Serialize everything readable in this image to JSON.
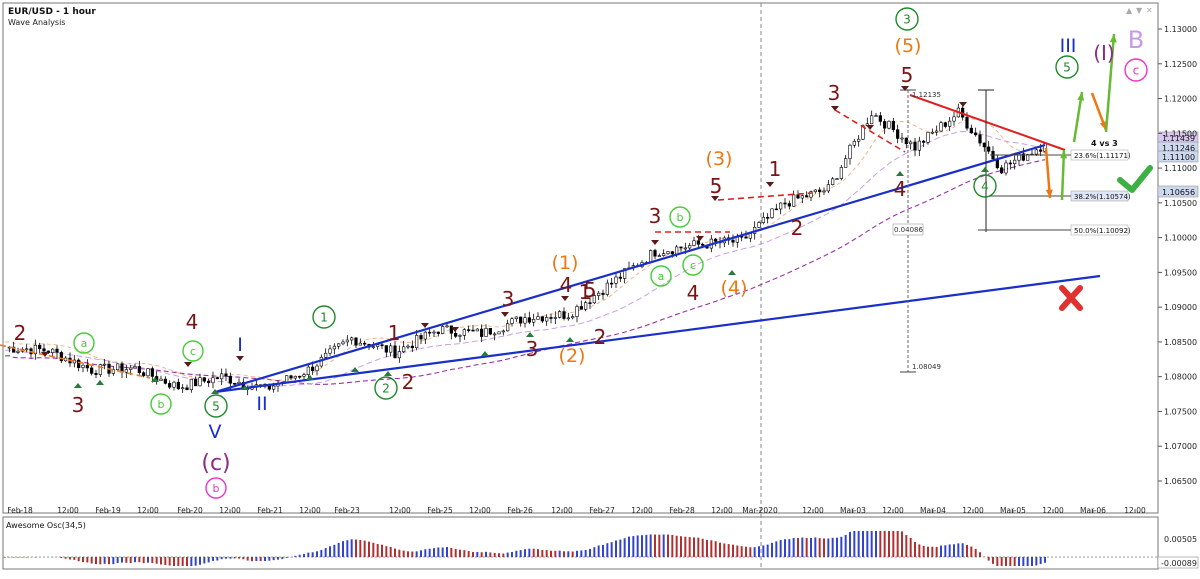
{
  "header": {
    "symbol": "EUR/USD - 1 hour",
    "subtitle": "Wave Analysis"
  },
  "window_controls": {
    "up": "▲",
    "down": "▼",
    "close": "✕"
  },
  "indicator": {
    "title": "Awesome Osc(34,5)",
    "axis_top": "0.00505",
    "axis_bottom": "-0.00089"
  },
  "x_ticks": [
    "Feb-18",
    "12:00",
    "Feb-19",
    "12:00",
    "Feb-20",
    "12:00",
    "Feb-21",
    "12:00",
    "Feb-23",
    "12:00",
    "Feb-25",
    "12:00",
    "Feb-26",
    "12:00",
    "Feb-27",
    "12:00",
    "Feb-28",
    "12:00",
    "Mar-2020",
    "12:00",
    "Mar-03",
    "12:00",
    "Mar-04",
    "12:00",
    "Mar-05",
    "12:00",
    "Mar-06",
    "12:00"
  ],
  "y_ticks": [
    "1.13000",
    "1.12500",
    "1.12000",
    "1.11500",
    "1.11000",
    "1.10500",
    "1.10000",
    "1.09500",
    "1.09000",
    "1.08500",
    "1.08000",
    "1.07500",
    "1.07000",
    "1.06500"
  ],
  "price_tags": [
    "1.11439",
    "1.11246",
    "1.11100",
    "1.10656"
  ],
  "fib_levels": [
    "23.6%(1.11171)",
    "38.2%(1.10574)",
    "50.0%(1.10092)"
  ],
  "measure_labels": [
    "1.12135",
    "0.04086",
    "1.08049"
  ],
  "annotation_4vs3": "4 vs 3",
  "wave_labels": {
    "dark_red": [
      "2",
      "3",
      "4",
      "3",
      "2",
      "1",
      "3",
      "4",
      "5",
      "1",
      "2",
      "3",
      "4",
      "5",
      "1",
      "2",
      "3",
      "4",
      "5"
    ],
    "orange": [
      "(1)",
      "(2)",
      "(3)",
      "(4)",
      "(5)"
    ],
    "green_circled": [
      "1",
      "2",
      "5",
      "3",
      "4",
      "5"
    ],
    "lime_circled": [
      "a",
      "c",
      "b",
      "a",
      "c",
      "b"
    ],
    "blue": [
      "I",
      "II",
      "V",
      "III"
    ],
    "purple": [
      "(c)",
      "(I)"
    ],
    "magenta_circled": [
      "b",
      "c"
    ],
    "lilac": [
      "B"
    ]
  },
  "chart_data": {
    "type": "line",
    "title": "EUR/USD - 1 hour",
    "subtitle": "Wave Analysis",
    "ylim": [
      1.0625,
      1.135
    ],
    "x": [
      "Feb-18",
      "12:00",
      "Feb-19",
      "12:00",
      "Feb-20",
      "12:00",
      "Feb-21",
      "12:00",
      "Feb-23",
      "12:00",
      "Feb-25",
      "12:00",
      "Feb-26",
      "12:00",
      "Feb-27",
      "12:00",
      "Feb-28",
      "12:00",
      "Mar-2020",
      "12:00",
      "Mar-03",
      "12:00",
      "Mar-04",
      "12:00",
      "Mar-05"
    ],
    "series": [
      {
        "values": [
          1.0842,
          1.0838,
          1.081,
          1.0812,
          1.0785,
          1.08,
          1.0782,
          1.081,
          1.0855,
          1.0835,
          1.0868,
          1.0862,
          1.0885,
          1.089,
          1.0935,
          1.098,
          1.099,
          1.0995,
          1.105,
          1.107,
          1.118,
          1.113,
          1.118,
          1.11,
          1.1135
        ]
      }
    ],
    "indicator": {
      "name": "Awesome Osc(34,5)",
      "ylim": [
        -0.00089,
        0.00505
      ]
    },
    "colors": {
      "up_bar": "#3344cc",
      "down_bar": "#b03030",
      "trend_blue": "#1a2fc8",
      "trend_red": "#e02020",
      "ma_purple": "#9933aa",
      "green_arrow": "#66bb33",
      "orange_arrow": "#ee7711"
    }
  }
}
